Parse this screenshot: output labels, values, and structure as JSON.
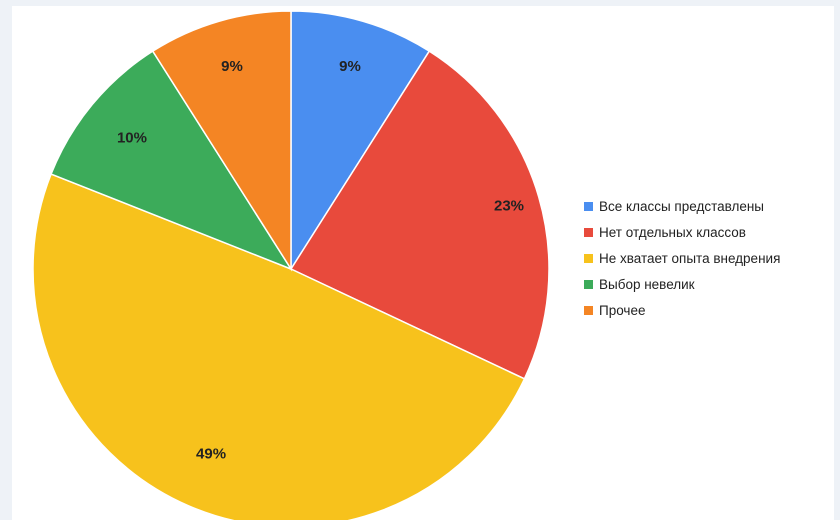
{
  "chart_data": {
    "type": "pie",
    "categories": [
      "Все классы представлены",
      "Нет отдельных классов",
      "Не хватает опыта внедрения",
      "Выбор невелик",
      "Прочее"
    ],
    "values": [
      9,
      23,
      49,
      10,
      9
    ],
    "value_labels": [
      "9%",
      "23%",
      "49%",
      "10%",
      "9%"
    ],
    "colors": [
      "#4a8ef0",
      "#e84a3c",
      "#f7c21c",
      "#3cab5a",
      "#f48524"
    ],
    "start_angle_deg": 0,
    "direction": "clockwise",
    "legend_position": "right"
  }
}
